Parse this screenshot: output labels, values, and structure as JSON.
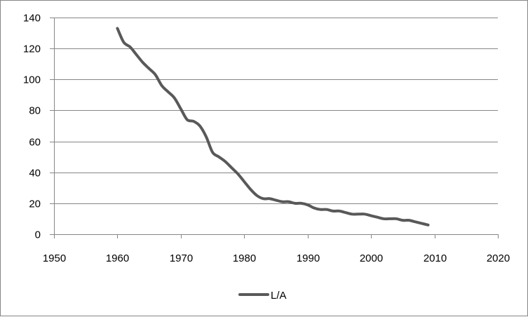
{
  "chart_data": {
    "type": "line",
    "title": "",
    "xlabel": "",
    "ylabel": "",
    "xlim": [
      1950,
      2020
    ],
    "ylim": [
      0,
      140
    ],
    "x_ticks": [
      1950,
      1960,
      1970,
      1980,
      1990,
      2000,
      2010,
      2020
    ],
    "y_ticks": [
      0,
      20,
      40,
      60,
      80,
      100,
      120,
      140
    ],
    "grid": {
      "horizontal": true,
      "vertical": false
    },
    "legend_position": "bottom",
    "series": [
      {
        "name": "L/A",
        "color": "#595959",
        "x": [
          1960,
          1961,
          1962,
          1963,
          1964,
          1965,
          1966,
          1967,
          1968,
          1969,
          1970,
          1971,
          1972,
          1973,
          1974,
          1975,
          1976,
          1977,
          1978,
          1979,
          1980,
          1981,
          1982,
          1983,
          1984,
          1985,
          1986,
          1987,
          1988,
          1989,
          1990,
          1991,
          1992,
          1993,
          1994,
          1995,
          1996,
          1997,
          1998,
          1999,
          2000,
          2001,
          2002,
          2003,
          2004,
          2005,
          2006,
          2007,
          2008,
          2009
        ],
        "y": [
          133,
          124,
          121,
          116,
          111,
          107,
          103,
          96,
          92,
          88,
          81,
          74,
          73,
          70,
          63,
          53,
          50,
          47,
          43,
          39,
          34,
          29,
          25,
          23,
          23,
          22,
          21,
          21,
          20,
          20,
          19,
          17,
          16,
          16,
          15,
          15,
          14,
          13,
          13,
          13,
          12,
          11,
          10,
          10,
          10,
          9,
          9,
          8,
          7,
          6
        ]
      }
    ]
  }
}
